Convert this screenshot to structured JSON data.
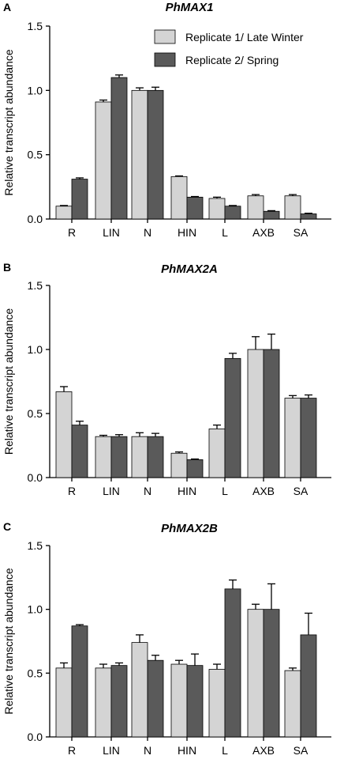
{
  "legend": [
    {
      "label": "Replicate 1/ Late Winter",
      "color": "#d4d4d4"
    },
    {
      "label": "Replicate 2/ Spring",
      "color": "#5a5a5a"
    }
  ],
  "chart_data": [
    {
      "type": "bar",
      "panel": "A",
      "title": "PhMAX1",
      "ylabel": "Relative transcript abundance",
      "ylim": [
        0,
        1.5
      ],
      "yticks": [
        "0.0",
        "0.5",
        "1.0",
        "1.5"
      ],
      "categories": [
        "R",
        "LIN",
        "N",
        "HIN",
        "L",
        "AXB",
        "SA"
      ],
      "series": [
        {
          "name": "Replicate 1/ Late Winter",
          "values": [
            0.1,
            0.91,
            1.0,
            0.33,
            0.16,
            0.18,
            0.18
          ],
          "errors": [
            0.005,
            0.015,
            0.02,
            0.005,
            0.01,
            0.01,
            0.01
          ]
        },
        {
          "name": "Replicate 2/ Spring",
          "values": [
            0.31,
            1.1,
            1.0,
            0.17,
            0.1,
            0.06,
            0.04
          ],
          "errors": [
            0.01,
            0.02,
            0.025,
            0.005,
            0.005,
            0.005,
            0.005
          ]
        }
      ]
    },
    {
      "type": "bar",
      "panel": "B",
      "title": "PhMAX2A",
      "ylabel": "Relative transcript abundance",
      "ylim": [
        0,
        1.5
      ],
      "yticks": [
        "0.0",
        "0.5",
        "1.0",
        "1.5"
      ],
      "categories": [
        "R",
        "LIN",
        "N",
        "HIN",
        "L",
        "AXB",
        "SA"
      ],
      "series": [
        {
          "name": "Replicate 1/ Late Winter",
          "values": [
            0.67,
            0.32,
            0.32,
            0.19,
            0.38,
            1.0,
            0.62
          ],
          "errors": [
            0.04,
            0.01,
            0.03,
            0.01,
            0.03,
            0.1,
            0.02
          ]
        },
        {
          "name": "Replicate 2/ Spring",
          "values": [
            0.41,
            0.32,
            0.32,
            0.14,
            0.93,
            1.0,
            0.62
          ],
          "errors": [
            0.03,
            0.015,
            0.025,
            0.005,
            0.04,
            0.12,
            0.025
          ]
        }
      ]
    },
    {
      "type": "bar",
      "panel": "C",
      "title": "PhMAX2B",
      "ylabel": "Relative transcript abundance",
      "ylim": [
        0,
        1.5
      ],
      "yticks": [
        "0.0",
        "0.5",
        "1.0",
        "1.5"
      ],
      "categories": [
        "R",
        "LIN",
        "N",
        "HIN",
        "L",
        "AXB",
        "SA"
      ],
      "series": [
        {
          "name": "Replicate 1/ Late Winter",
          "values": [
            0.54,
            0.54,
            0.74,
            0.57,
            0.53,
            1.0,
            0.52
          ],
          "errors": [
            0.04,
            0.03,
            0.06,
            0.03,
            0.04,
            0.04,
            0.02
          ]
        },
        {
          "name": "Replicate 2/ Spring",
          "values": [
            0.87,
            0.56,
            0.6,
            0.56,
            1.16,
            1.0,
            0.8
          ],
          "errors": [
            0.01,
            0.02,
            0.04,
            0.09,
            0.07,
            0.2,
            0.17
          ]
        }
      ]
    }
  ]
}
